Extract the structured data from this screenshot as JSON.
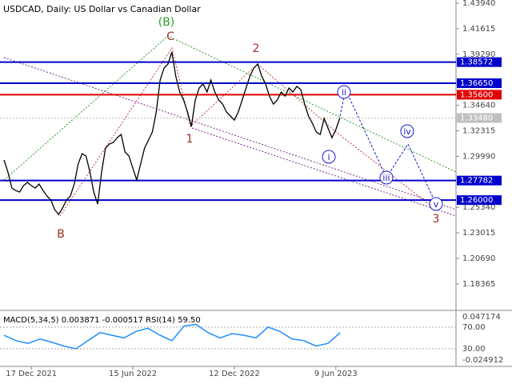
{
  "chart_data": [
    {
      "type": "line",
      "title": "USDCAD, Daily:  US Dollar vs Canadian Dollar",
      "categories": [
        null,
        null,
        null,
        null,
        null,
        null,
        null,
        "17 Dec 2021",
        null,
        null,
        null,
        null,
        null,
        null,
        null,
        null,
        null,
        null,
        null,
        null,
        null,
        null,
        null,
        null,
        null,
        null,
        null,
        null,
        null,
        null,
        null,
        null,
        null,
        "15 Jun 2022",
        null,
        null,
        null,
        null,
        null,
        null,
        null,
        null,
        null,
        null,
        null,
        null,
        null,
        null,
        null,
        null,
        null,
        null,
        null,
        null,
        null,
        null,
        null,
        null,
        null,
        "12 Dec 2022",
        null,
        null,
        null,
        null,
        null,
        null,
        null,
        null,
        null,
        null,
        null,
        null,
        null,
        null,
        null,
        null,
        null,
        null,
        null,
        null,
        null,
        null,
        null,
        null,
        null,
        "9 Jun 2023",
        null
      ],
      "series": [
        {
          "color": "#000000",
          "values": [
            1.2965,
            1.2856,
            1.271,
            1.2688,
            1.2673,
            1.2732,
            1.2761,
            1.2732,
            1.271,
            1.2746,
            1.2688,
            1.2637,
            1.26,
            1.2513,
            1.2469,
            1.2528,
            1.26,
            1.2637,
            1.2746,
            1.2929,
            1.3023,
            1.3001,
            1.2856,
            1.2673,
            1.2564,
            1.2856,
            1.3074,
            1.3111,
            1.3125,
            1.3169,
            1.3198,
            1.3038,
            1.3001,
            1.2892,
            1.2783,
            1.2929,
            1.3074,
            1.3147,
            1.322,
            1.3402,
            1.3694,
            1.3803,
            1.384,
            1.3949,
            1.373,
            1.3585,
            1.3512,
            1.3402,
            1.3271,
            1.3512,
            1.3621,
            1.3658,
            1.3585,
            1.3694,
            1.3585,
            1.3512,
            1.3475,
            1.3402,
            1.3366,
            1.3329,
            1.3402,
            1.3512,
            1.3621,
            1.373,
            1.3803,
            1.384,
            1.373,
            1.3658,
            1.3548,
            1.3475,
            1.3512,
            1.3585,
            1.3548,
            1.3621,
            1.3585,
            1.3636,
            1.3607,
            1.3475,
            1.3366,
            1.33,
            1.322,
            1.3198,
            1.3344,
            1.3257,
            1.3169,
            1.3242,
            1.3348
          ]
        }
      ],
      "ylim": [
        1.1617,
        1.4423
      ],
      "yticks": [
        {
          "value": 1.4394,
          "label": "1.43940"
        },
        1.41615,
        {
          "value": 1.3929,
          "label": "1.39290"
        },
        {
          "value": 1.3464,
          "label": "1.34640"
        },
        1.32315,
        {
          "value": 1.2999,
          "label": "1.29990"
        },
        {
          "value": 1.2534,
          "label": "1.25340"
        },
        1.23015,
        {
          "value": 1.2069,
          "label": "1.20690"
        },
        1.18365
      ],
      "levels": [
        {
          "value": 1.38572,
          "color": "#0000cc"
        },
        {
          "value": 1.3665,
          "label": "1.36650",
          "color": "#0000cc"
        },
        {
          "value": 1.356,
          "label": "1.35600",
          "color": "#e00000"
        },
        {
          "value": 1.3348,
          "label": "1.33480",
          "color": "#c0c0c0"
        },
        {
          "value": 1.27782,
          "color": "#0000cc"
        },
        {
          "value": 1.26,
          "label": "1.26000",
          "color": "#0000cc"
        }
      ],
      "annotations": [
        {
          "text": "(B)",
          "color": "#2e9e2e"
        },
        {
          "text": "C",
          "color": "#a0302a"
        },
        {
          "text": "2",
          "color": "#a0302a"
        },
        {
          "text": "1",
          "color": "#a0302a"
        },
        {
          "text": "B",
          "color": "#a0302a"
        },
        {
          "text": "3",
          "color": "#a0302a"
        },
        {
          "text": "i",
          "color": "#1a1acc"
        },
        {
          "text": "ii",
          "color": "#1a1acc"
        },
        {
          "text": "iii",
          "color": "#1a1acc"
        },
        {
          "text": "iv",
          "color": "#1a1acc"
        },
        {
          "text": "v",
          "color": "#1a1acc"
        }
      ]
    },
    {
      "type": "indicator",
      "title": "MACD(5,34,5) 0.003871 -0.000517 RSI(14) 59.50",
      "axis_labels": [
        "0.047174",
        "-0.024912"
      ],
      "ylim": [
        -2.6,
        98
      ],
      "yticks": [
        {
          "value": 70,
          "label": "70.00"
        },
        {
          "value": 30,
          "label": "30.00"
        }
      ],
      "series": [
        {
          "color": "#1e90ff",
          "values": [
            55,
            45,
            40,
            48,
            42,
            35,
            30,
            45,
            60,
            55,
            50,
            62,
            68,
            55,
            45,
            72,
            75,
            60,
            50,
            58,
            55,
            50,
            70,
            62,
            48,
            45,
            35,
            40,
            59.5
          ]
        }
      ]
    }
  ]
}
